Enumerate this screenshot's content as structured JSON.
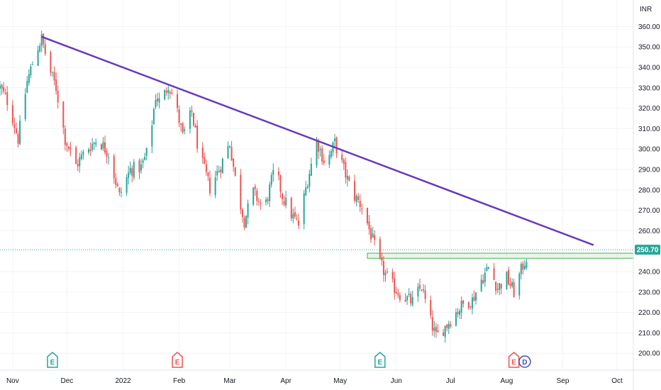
{
  "chart_data": {
    "type": "candlestick",
    "currency_label": "INR",
    "last_price_label": "250.70",
    "ylim": [
      195,
      365
    ],
    "y_ticks": [
      "200.00",
      "210.00",
      "220.00",
      "230.00",
      "240.00",
      "250.00",
      "260.00",
      "270.00",
      "280.00",
      "290.00",
      "300.00",
      "310.00",
      "320.00",
      "330.00",
      "340.00",
      "350.00",
      "360.00"
    ],
    "x_ticks": [
      "Nov",
      "Dec",
      "2022",
      "Feb",
      "Mar",
      "Apr",
      "May",
      "Jun",
      "Jul",
      "Aug",
      "Sep",
      "Oct"
    ],
    "x_range": [
      "2021-10-25",
      "2022-10-10"
    ],
    "x_tick_dates": [
      "2021-11-01",
      "2021-12-01",
      "2022-01-01",
      "2022-02-01",
      "2022-03-01",
      "2022-04-01",
      "2022-05-01",
      "2022-06-01",
      "2022-07-01",
      "2022-08-01",
      "2022-09-01",
      "2022-10-01"
    ],
    "colors": {
      "up": "#26a69a",
      "down": "#ef5350",
      "trendline": "#673ab7",
      "zone": "#4caf50",
      "event": "#26a69a",
      "event_down": "#ef5350",
      "dividend": "#3f51b5",
      "price_tag": "#26a69a"
    },
    "trendline": {
      "start": {
        "date": "2021-11-17",
        "value": 355
      },
      "end": {
        "date": "2022-09-18",
        "value": 253
      }
    },
    "resistance_zone": {
      "start_date": "2022-05-16",
      "top": 249,
      "bottom": 246.5
    },
    "events": [
      {
        "date": "2021-11-23",
        "label": "E",
        "kind": "earnings-up"
      },
      {
        "date": "2022-01-31",
        "label": "E",
        "kind": "earnings-down"
      },
      {
        "date": "2022-05-23",
        "label": "E",
        "kind": "earnings-up"
      },
      {
        "date": "2022-08-05",
        "label": "E",
        "kind": "earnings-down"
      },
      {
        "date": "2022-08-11",
        "label": "D",
        "kind": "dividend"
      }
    ],
    "anchors": [
      [
        "2021-10-25",
        330
      ],
      [
        "2021-10-30",
        322
      ],
      [
        "2021-11-04",
        305
      ],
      [
        "2021-11-09",
        333
      ],
      [
        "2021-11-14",
        348
      ],
      [
        "2021-11-17",
        354
      ],
      [
        "2021-11-21",
        340
      ],
      [
        "2021-11-25",
        330
      ],
      [
        "2021-11-30",
        305
      ],
      [
        "2021-12-06",
        292
      ],
      [
        "2021-12-12",
        300
      ],
      [
        "2021-12-18",
        305
      ],
      [
        "2021-12-24",
        298
      ],
      [
        "2021-12-30",
        277
      ],
      [
        "2022-01-05",
        290
      ],
      [
        "2022-01-11",
        291
      ],
      [
        "2022-01-15",
        300
      ],
      [
        "2022-01-19",
        326
      ],
      [
        "2022-01-22",
        322
      ],
      [
        "2022-01-26",
        332
      ],
      [
        "2022-01-30",
        322
      ],
      [
        "2022-02-03",
        306
      ],
      [
        "2022-02-08",
        318
      ],
      [
        "2022-02-12",
        298
      ],
      [
        "2022-02-18",
        281
      ],
      [
        "2022-02-24",
        292
      ],
      [
        "2022-03-01",
        303
      ],
      [
        "2022-03-05",
        280
      ],
      [
        "2022-03-09",
        265
      ],
      [
        "2022-03-14",
        279
      ],
      [
        "2022-03-20",
        270
      ],
      [
        "2022-03-26",
        291
      ],
      [
        "2022-03-30",
        277
      ],
      [
        "2022-04-04",
        268
      ],
      [
        "2022-04-08",
        263
      ],
      [
        "2022-04-13",
        285
      ],
      [
        "2022-04-18",
        304
      ],
      [
        "2022-04-23",
        292
      ],
      [
        "2022-04-28",
        303
      ],
      [
        "2022-05-03",
        290
      ],
      [
        "2022-05-08",
        278
      ],
      [
        "2022-05-13",
        272
      ],
      [
        "2022-05-18",
        258
      ],
      [
        "2022-05-23",
        244
      ],
      [
        "2022-05-28",
        235
      ],
      [
        "2022-06-03",
        229
      ],
      [
        "2022-06-10",
        225
      ],
      [
        "2022-06-15",
        233
      ],
      [
        "2022-06-19",
        218
      ],
      [
        "2022-06-23",
        208
      ],
      [
        "2022-06-28",
        213
      ],
      [
        "2022-07-04",
        220
      ],
      [
        "2022-07-09",
        225
      ],
      [
        "2022-07-13",
        226
      ],
      [
        "2022-07-18",
        236
      ],
      [
        "2022-07-22",
        242
      ],
      [
        "2022-07-27",
        232
      ],
      [
        "2022-08-01",
        237
      ],
      [
        "2022-08-05",
        230
      ],
      [
        "2022-08-10",
        243
      ],
      [
        "2022-08-14",
        250.7
      ]
    ]
  }
}
